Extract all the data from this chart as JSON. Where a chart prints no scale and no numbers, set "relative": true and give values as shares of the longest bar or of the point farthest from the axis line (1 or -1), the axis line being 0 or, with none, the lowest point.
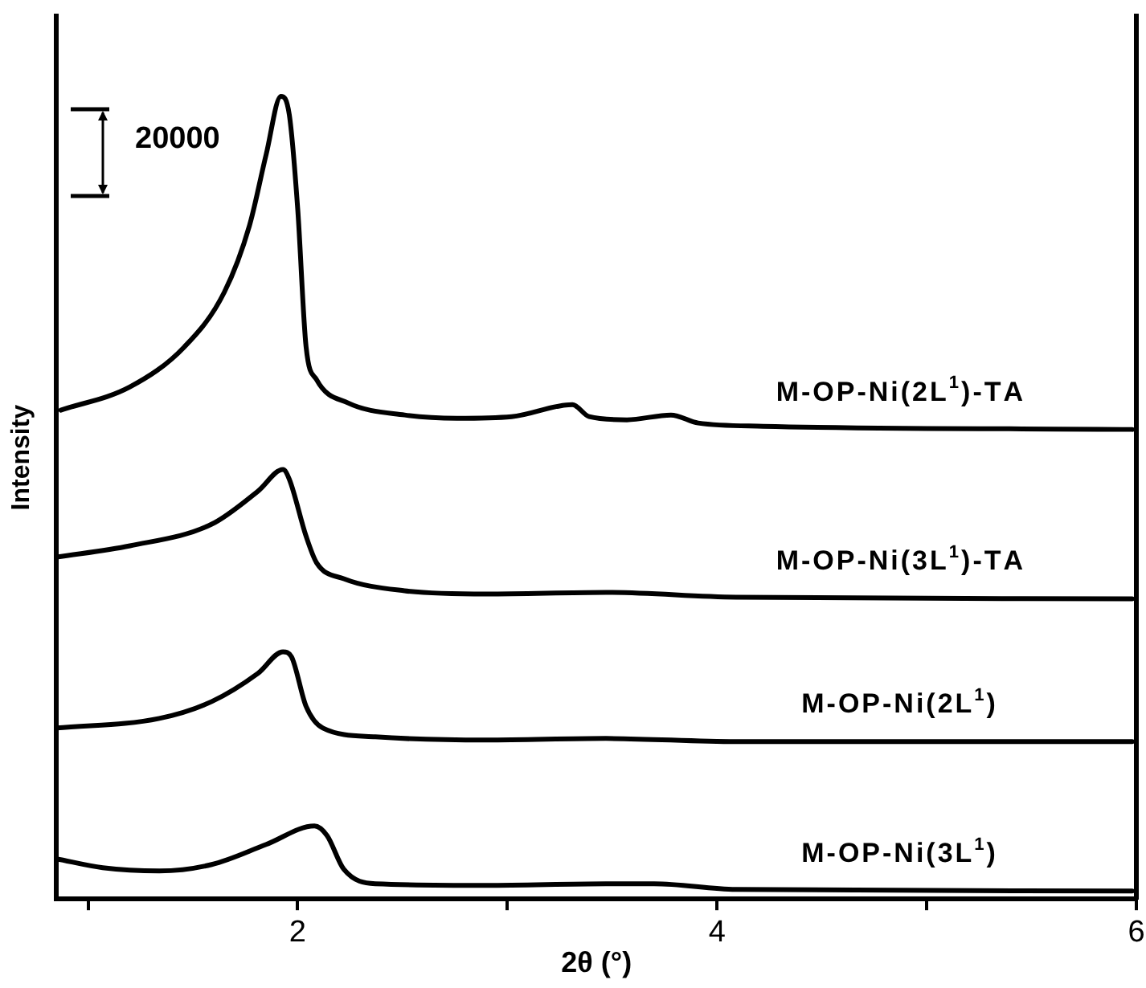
{
  "chart_data": {
    "type": "line",
    "relative": true,
    "xlabel": "2θ (°)",
    "ylabel": "Intensity",
    "xlim": [
      0.85,
      6
    ],
    "xticks": [
      {
        "value": 1,
        "label": null
      },
      2,
      {
        "value": 3,
        "label": null
      },
      4,
      {
        "value": 5,
        "label": null
      },
      6
    ],
    "grid": false,
    "legend": false,
    "marker": "none",
    "line_style": "solid",
    "annotations": [
      "20000"
    ],
    "series": [
      {
        "name": "M-OP-Ni(2L$^{1}$)-TA",
        "color": "#000000",
        "x": [
          0.87,
          1.2,
          1.46,
          1.65,
          1.77,
          1.85,
          1.92,
          1.96,
          2.0,
          2.04,
          2.09,
          2.24,
          2.51,
          2.76,
          3.02,
          3.31,
          3.39,
          3.57,
          3.78,
          3.91,
          4.22,
          5.98
        ],
        "values": [
          0.609,
          0.638,
          0.688,
          0.756,
          0.839,
          0.928,
          1.0,
          0.977,
          0.86,
          0.688,
          0.647,
          0.618,
          0.603,
          0.599,
          0.601,
          0.616,
          0.601,
          0.597,
          0.603,
          0.593,
          0.589,
          0.585
        ]
      },
      {
        "name": "M-OP-Ni(3L$^{1}$)-TA",
        "color": "#000000",
        "x": [
          0.85,
          1.2,
          1.59,
          1.81,
          1.93,
          1.96,
          2.04,
          2.09,
          2.22,
          2.51,
          2.9,
          3.47,
          4.09,
          5.98
        ],
        "values": [
          0.426,
          0.44,
          0.467,
          0.508,
          0.535,
          0.523,
          0.452,
          0.419,
          0.399,
          0.384,
          0.38,
          0.382,
          0.376,
          0.374
        ]
      },
      {
        "name": "M-OP-Ni(2L$^{1}$)",
        "color": "#000000",
        "x": [
          0.85,
          1.34,
          1.59,
          1.81,
          1.93,
          1.97,
          2.04,
          2.12,
          2.37,
          2.9,
          3.47,
          4.09,
          5.98
        ],
        "values": [
          0.213,
          0.225,
          0.246,
          0.281,
          0.308,
          0.302,
          0.24,
          0.213,
          0.202,
          0.198,
          0.2,
          0.196,
          0.196
        ]
      },
      {
        "name": "M-OP-Ni(3L$^{1}$)",
        "color": "#000000",
        "x": [
          0.85,
          1.07,
          1.34,
          1.59,
          1.85,
          2.08,
          2.14,
          2.22,
          2.37,
          2.9,
          3.47,
          3.7,
          4.09,
          5.98
        ],
        "values": [
          0.05,
          0.039,
          0.035,
          0.043,
          0.068,
          0.091,
          0.079,
          0.037,
          0.019,
          0.017,
          0.019,
          0.019,
          0.012,
          0.01
        ]
      }
    ]
  }
}
